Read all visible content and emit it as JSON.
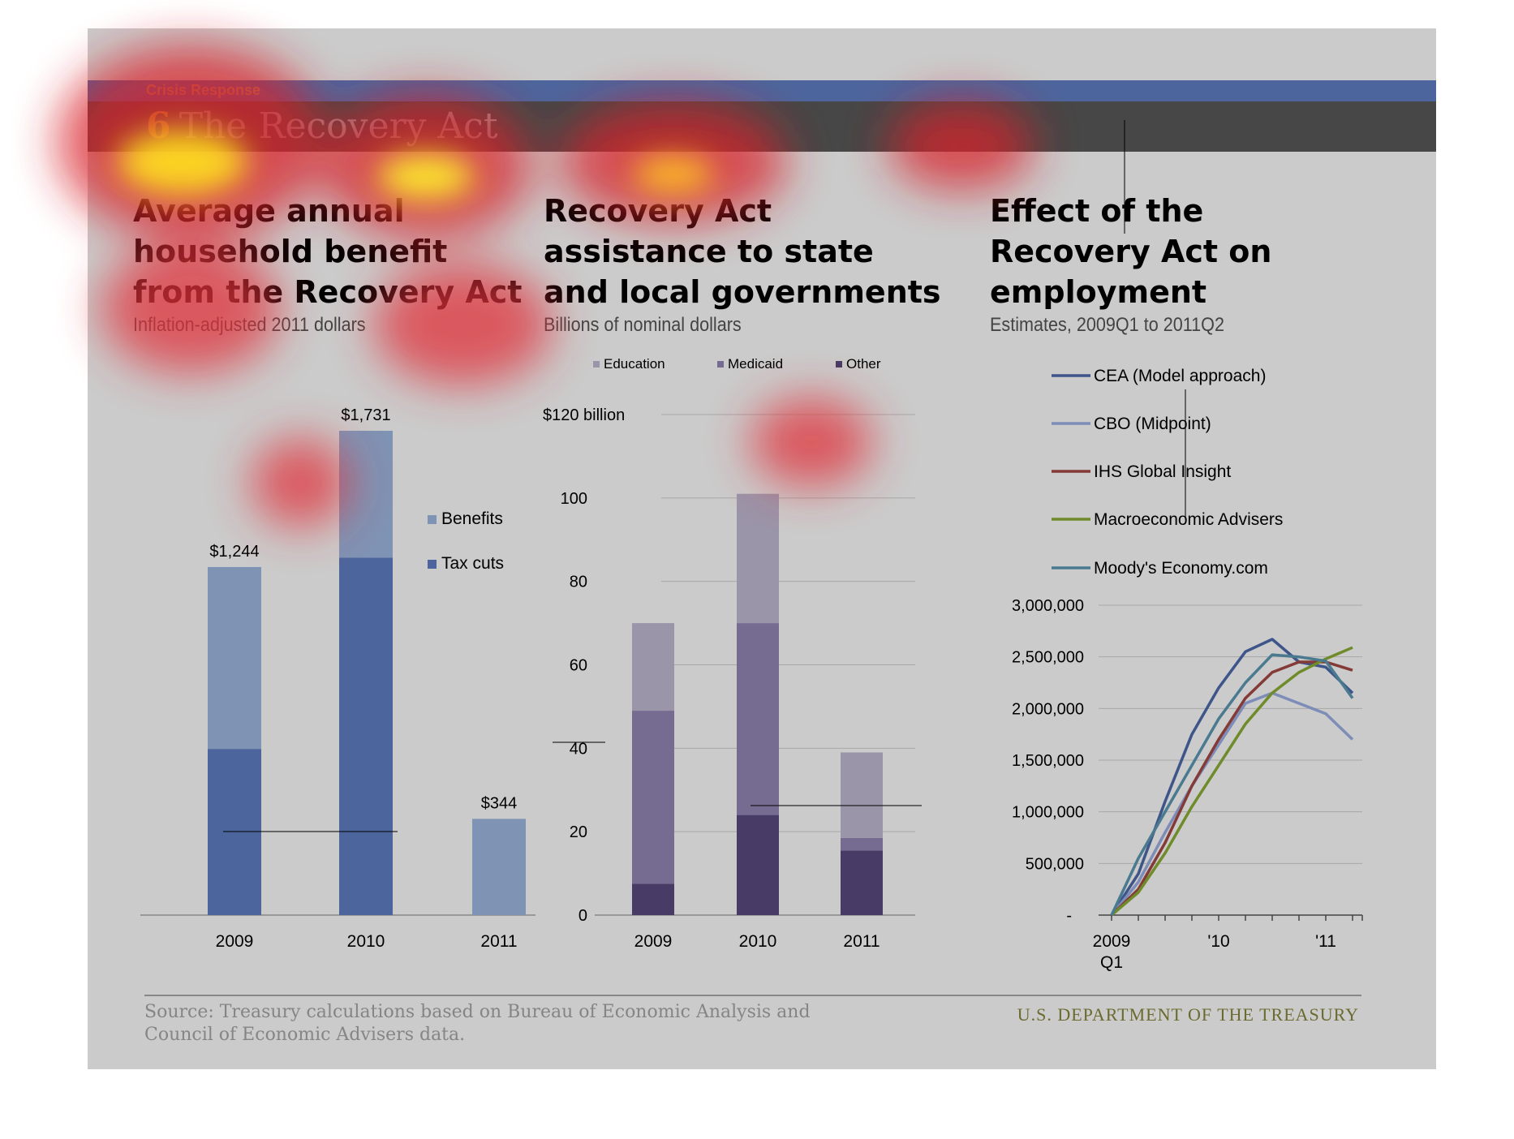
{
  "header": {
    "section": "Crisis Response",
    "number": "6",
    "title": "The Recovery Act"
  },
  "panels": [
    {
      "title_lines": [
        "Average annual",
        "household benefit",
        "from the Recovery Act"
      ],
      "subtitle": "Inflation-adjusted 2011 dollars"
    },
    {
      "title_lines": [
        "Recovery Act",
        "assistance to state",
        "and local governments"
      ],
      "subtitle": "Billions of nominal dollars"
    },
    {
      "title_lines": [
        "Effect of the",
        "Recovery Act on",
        "employment"
      ],
      "subtitle": "Estimates, 2009Q1 to 2011Q2"
    }
  ],
  "footer": {
    "source": "Source: Treasury calculations based on Bureau of Economic Analysis and Council of Economic Advisers data.",
    "agency": "U.S. DEPARTMENT OF THE TREASURY"
  },
  "colors": {
    "benefits": "#7f93b4",
    "tax_cuts": "#4c669d",
    "education": "#9b95a9",
    "medicaid": "#766b91",
    "other": "#483c66",
    "cea": "#3d5589",
    "cbo": "#7d8db8",
    "ihs": "#843a36",
    "macro": "#6f8b2a",
    "moodys": "#4a7a90"
  },
  "chart_data": [
    {
      "type": "bar",
      "stacked": true,
      "categories": [
        "2009",
        "2010",
        "2011"
      ],
      "series": [
        {
          "name": "Tax cuts",
          "values": [
            594,
            1278,
            0
          ]
        },
        {
          "name": "Benefits",
          "values": [
            650,
            453,
            344
          ]
        }
      ],
      "totals": [
        1244,
        1731,
        344
      ],
      "data_labels": [
        "$1,244",
        "$1,731",
        "$344"
      ],
      "ylim": [
        0,
        1731
      ],
      "legend": "right",
      "title": "Average annual household benefit from the Recovery Act",
      "subtitle": "Inflation-adjusted 2011 dollars"
    },
    {
      "type": "bar",
      "stacked": true,
      "categories": [
        "2009",
        "2010",
        "2011"
      ],
      "series": [
        {
          "name": "Other",
          "values": [
            7.5,
            24,
            15.5
          ]
        },
        {
          "name": "Medicaid",
          "values": [
            41.5,
            46,
            3
          ]
        },
        {
          "name": "Education",
          "values": [
            21,
            31,
            20.5
          ]
        }
      ],
      "ylim": [
        0,
        120
      ],
      "yticks": [
        "0",
        "20",
        "40",
        "60",
        "80",
        "100",
        "$120 billion"
      ],
      "grid": true,
      "legend": "top",
      "legend_order": [
        "Education",
        "Medicaid",
        "Other"
      ],
      "title": "Recovery Act assistance to state and local governments",
      "subtitle": "Billions of nominal dollars"
    },
    {
      "type": "line",
      "x": [
        "2009Q1",
        "2009Q2",
        "2009Q3",
        "2009Q4",
        "2010Q1",
        "2010Q2",
        "2010Q3",
        "2010Q4",
        "2011Q1",
        "2011Q2"
      ],
      "xtick_labels": [
        "2009",
        "'10",
        "'11"
      ],
      "xtick_sublabel": "Q1",
      "series": [
        {
          "name": "CEA (Model approach)",
          "values": [
            0,
            400000,
            1100000,
            1750000,
            2200000,
            2550000,
            2670000,
            2450000,
            2400000,
            2150000
          ]
        },
        {
          "name": "CBO (Midpoint)",
          "values": [
            0,
            320000,
            800000,
            1250000,
            1650000,
            2050000,
            2150000,
            2050000,
            1950000,
            1700000
          ]
        },
        {
          "name": "IHS Global Insight",
          "values": [
            0,
            250000,
            700000,
            1250000,
            1700000,
            2100000,
            2350000,
            2450000,
            2450000,
            2370000
          ]
        },
        {
          "name": "Macroeconomic Advisers",
          "values": [
            0,
            220000,
            600000,
            1050000,
            1450000,
            1850000,
            2150000,
            2350000,
            2480000,
            2590000
          ]
        },
        {
          "name": "Moody's Economy.com",
          "values": [
            0,
            550000,
            1000000,
            1450000,
            1900000,
            2250000,
            2520000,
            2500000,
            2460000,
            2100000
          ]
        }
      ],
      "ylim": [
        0,
        3000000
      ],
      "yticks": [
        "-",
        "500,000",
        "1,000,000",
        "1,500,000",
        "2,000,000",
        "2,500,000",
        "3,000,000"
      ],
      "grid": true,
      "legend": "top",
      "title": "Effect of the Recovery Act on employment",
      "subtitle": "Estimates, 2009Q1 to 2011Q2"
    }
  ]
}
